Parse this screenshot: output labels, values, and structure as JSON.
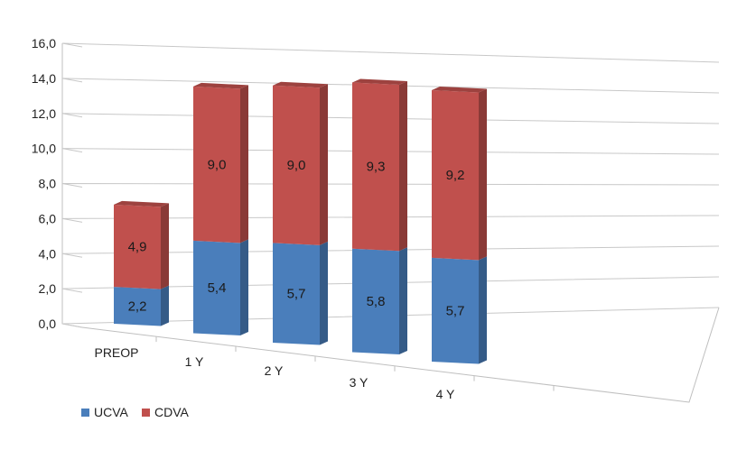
{
  "chart_data": {
    "type": "bar",
    "stacked": true,
    "three_d": true,
    "categories": [
      "PREOP",
      "1 Y",
      "2 Y",
      "3 Y",
      "4 Y"
    ],
    "series": [
      {
        "name": "UCVA",
        "values": [
          2.2,
          5.4,
          5.7,
          5.8,
          5.7
        ],
        "labels": [
          "2,2",
          "5,4",
          "5,7",
          "5,8",
          "5,7"
        ],
        "color": "#4a7ebb"
      },
      {
        "name": "CDVA",
        "values": [
          4.9,
          9.0,
          9.0,
          9.3,
          9.2
        ],
        "labels": [
          "4,9",
          "9,0",
          "9,0",
          "9,3",
          "9,2"
        ],
        "color": "#c0504d"
      }
    ],
    "y_ticks": [
      "0,0",
      "2,0",
      "4,0",
      "6,0",
      "8,0",
      "10,0",
      "12,0",
      "14,0",
      "16,0"
    ],
    "ylim": [
      0,
      16
    ],
    "grid": true,
    "legend_position": "bottom-left",
    "title": "",
    "xlabel": "",
    "ylabel": ""
  }
}
